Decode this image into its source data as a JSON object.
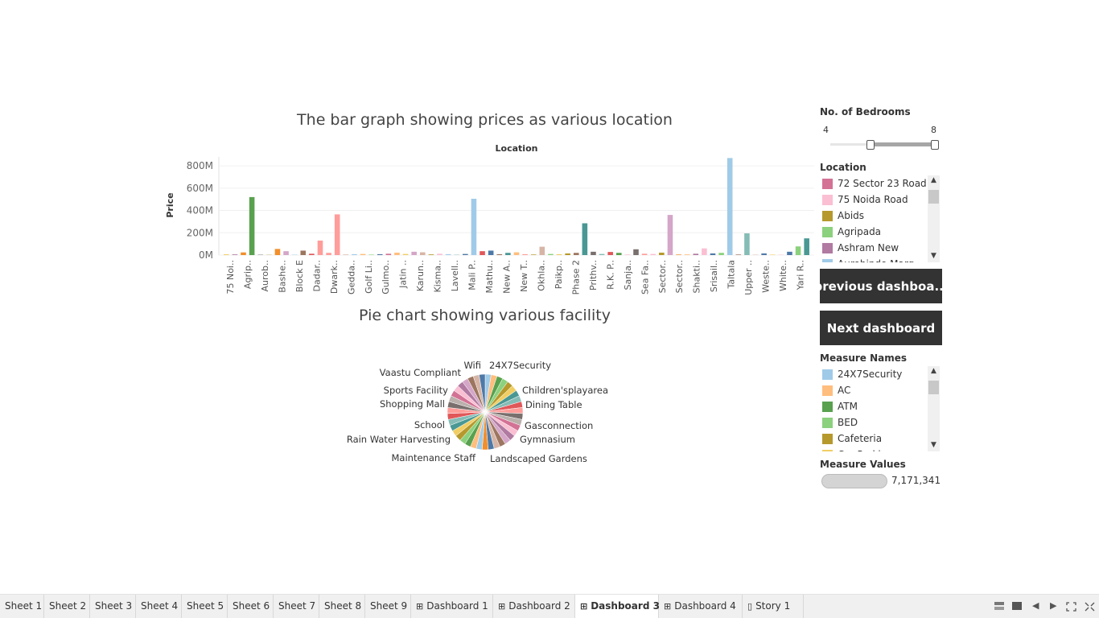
{
  "bar_chart": {
    "title": "The bar graph showing prices as various location",
    "xlabel": "Location",
    "ylabel": "Price"
  },
  "pie_chart": {
    "title": "Pie chart showing various facility"
  },
  "chart_data": [
    {
      "type": "bar",
      "title": "The bar graph showing prices as various location",
      "xlabel": "Location",
      "ylabel": "Price",
      "ylim": [
        0,
        880
      ],
      "y_unit": "M",
      "yticks": [
        "0M",
        "200M",
        "400M",
        "600M",
        "800M"
      ],
      "tick_labels": [
        "75 Noi..",
        "Agrip..",
        "Aurob..",
        "Bashe..",
        "Block E",
        "Dadar..",
        "Dwark..",
        "Gedda..",
        "Golf Li..",
        "Gulmo..",
        "Jatin ..",
        "Karun..",
        "Kisma..",
        "Lavell..",
        "Mali P..",
        "Mathu..",
        "New A..",
        "New T..",
        "Okhla..",
        "Paikp..",
        "Phase 2",
        "Prithv..",
        "R.K. P..",
        "Sanja..",
        "Sea Fa..",
        "Sector..",
        "Sector..",
        "Shakti..",
        "Srisail..",
        "Taltala",
        "Upper ..",
        "Weste..",
        "White..",
        "Yari R.."
      ],
      "values": [
        7,
        6,
        24,
        520,
        3,
        2,
        55,
        35,
        3,
        40,
        12,
        130,
        20,
        365,
        5,
        8,
        10,
        4,
        8,
        12,
        22,
        10,
        30,
        25,
        6,
        12,
        8,
        3,
        10,
        505,
        35,
        40,
        8,
        20,
        25,
        8,
        5,
        75,
        10,
        8,
        15,
        20,
        285,
        30,
        10,
        28,
        20,
        5,
        52,
        12,
        10,
        22,
        360,
        5,
        6,
        12,
        60,
        15,
        20,
        870,
        5,
        195,
        3,
        15,
        4,
        3,
        30,
        78,
        150
      ],
      "colors": [
        "#F1CE63",
        "#B07AA1",
        "#F28E2B",
        "#59A14F",
        "#79706E",
        "#B6992D",
        "#F28E2B",
        "#D4A6C8",
        "#A0CBE8",
        "#9D7660",
        "#E15759",
        "#FF9D9A",
        "#FF9D9A",
        "#FF9D9A",
        "#D7B5A6",
        "#A0CBE8",
        "#FFBE7D",
        "#8CD17D",
        "#4E79A7",
        "#D37295",
        "#FFBE7D",
        "#F1CE63",
        "#D4A6C8",
        "#D7B5A6",
        "#B6992D",
        "#FABFD2",
        "#A0CBE8",
        "#86BCB6",
        "#4E79A7",
        "#A0CBE8",
        "#E15759",
        "#4E79A7",
        "#9D7660",
        "#499894",
        "#FFBE7D",
        "#FF9D9A",
        "#B6992D",
        "#D7B5A6",
        "#8CD17D",
        "#F1CE63",
        "#B6992D",
        "#9D7660",
        "#499894",
        "#79706E",
        "#86BCB6",
        "#E15759",
        "#59A14F",
        "#FABFD2",
        "#79706E",
        "#FF9D9A",
        "#FABFD2",
        "#B6992D",
        "#D4A6C8",
        "#F28E2B",
        "#FFBE7D",
        "#B07AA1",
        "#FABFD2",
        "#4E79A7",
        "#8CD17D",
        "#A0CBE8",
        "#9D7660",
        "#86BCB6",
        "#D7B5A6",
        "#4E79A7",
        "#F1CE63",
        "#FABFD2",
        "#4E79A7",
        "#8CD17D",
        "#499894"
      ]
    },
    {
      "type": "pie",
      "title": "Pie chart showing various facility",
      "labels": [
        "24X7Security",
        "Children'splayarea",
        "Dining Table",
        "Gasconnection",
        "Gymnasium",
        "Landscaped Gardens",
        "Maintenance Staff",
        "Rain Water Harvesting",
        "School",
        "Shopping Mall",
        "Sports Facility",
        "Vaastu Compliant",
        "Wifi"
      ],
      "slice_count": 39,
      "colors": [
        "#A0CBE8",
        "#FFBE7D",
        "#59A14F",
        "#8CD17D",
        "#B6992D",
        "#F1CE63",
        "#499894",
        "#86BCB6",
        "#E15759",
        "#FF9D9A",
        "#79706E",
        "#BAB0AC",
        "#D37295",
        "#FABFD2",
        "#B07AA1",
        "#D4A6C8",
        "#9D7660",
        "#D7B5A6",
        "#4E79A7",
        "#F28E2B"
      ]
    }
  ],
  "filters": {
    "bedrooms": {
      "title": "No. of Bedrooms",
      "min_label": "4",
      "max_label": "8"
    },
    "location": {
      "title": "Location",
      "items": [
        {
          "label": "72 Sector 23 Road",
          "color": "#D37295"
        },
        {
          "label": "75 Noida Road",
          "color": "#FABFD2"
        },
        {
          "label": "Abids",
          "color": "#B6992D"
        },
        {
          "label": "Agripada",
          "color": "#8CD17D"
        },
        {
          "label": "Ashram New",
          "color": "#B07AA1"
        },
        {
          "label": "Aurobindo Marg",
          "color": "#A0CBE8"
        }
      ]
    },
    "measure_names": {
      "title": "Measure Names",
      "items": [
        {
          "label": "24X7Security",
          "color": "#A0CBE8"
        },
        {
          "label": "AC",
          "color": "#FFBE7D"
        },
        {
          "label": "ATM",
          "color": "#59A14F"
        },
        {
          "label": "BED",
          "color": "#8CD17D"
        },
        {
          "label": "Cafeteria",
          "color": "#B6992D"
        },
        {
          "label": "Car Parking",
          "color": "#F1CE63"
        }
      ]
    },
    "measure_values": {
      "title": "Measure Values",
      "value": "7,171,341"
    }
  },
  "buttons": {
    "previous": "previous dashboa...",
    "next": "Next dashboard"
  },
  "tabs": [
    {
      "label": "Sheet 1",
      "kind": "sheet"
    },
    {
      "label": "Sheet 2",
      "kind": "sheet"
    },
    {
      "label": "Sheet 3",
      "kind": "sheet"
    },
    {
      "label": "Sheet 4",
      "kind": "sheet"
    },
    {
      "label": "Sheet 5",
      "kind": "sheet"
    },
    {
      "label": "Sheet 6",
      "kind": "sheet"
    },
    {
      "label": "Sheet 7",
      "kind": "sheet"
    },
    {
      "label": "Sheet 8",
      "kind": "sheet"
    },
    {
      "label": "Sheet 9",
      "kind": "sheet"
    },
    {
      "label": "Dashboard 1",
      "kind": "dashboard"
    },
    {
      "label": "Dashboard 2",
      "kind": "dashboard"
    },
    {
      "label": "Dashboard 3",
      "kind": "dashboard",
      "active": true
    },
    {
      "label": "Dashboard 4",
      "kind": "dashboard"
    },
    {
      "label": "Story 1",
      "kind": "story"
    }
  ],
  "active_tab": "Dashboard 3",
  "tab_controls": [
    "grid-view-icon",
    "film-strip-icon",
    "prev-arrow-icon",
    "next-arrow-icon",
    "fit-screen-icon",
    "fullscreen-icon"
  ]
}
